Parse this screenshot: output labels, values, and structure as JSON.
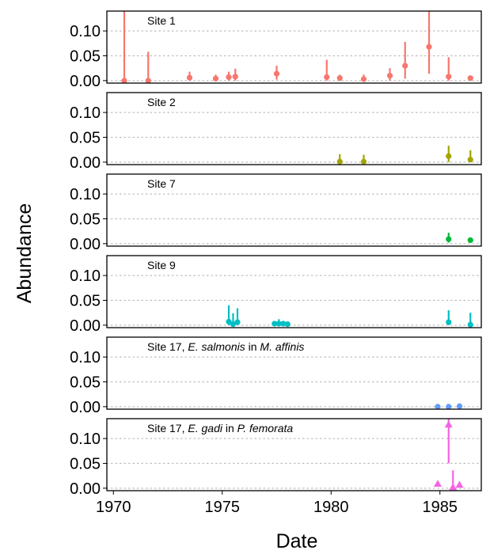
{
  "chart_data": {
    "type": "scatter",
    "xlabel": "Date",
    "ylabel": "Abundance",
    "xlim": [
      1969.7,
      1986.9
    ],
    "ylim": [
      -0.005,
      0.14
    ],
    "xticks": [
      1970,
      1975,
      1980,
      1985
    ],
    "xtick_labels": [
      "1970",
      "1975",
      "1980",
      "1985"
    ],
    "yticks": [
      0.0,
      0.05,
      0.1
    ],
    "ytick_labels": [
      "0.00",
      "0.05",
      "0.10"
    ],
    "panels": [
      {
        "label": [
          {
            "text": "Site 1",
            "italic": false
          }
        ],
        "color": "#F8766D",
        "marker": "circle",
        "points": [
          {
            "x": 1970.5,
            "y": 0.0,
            "lo": 0.0,
            "hi": 0.14
          },
          {
            "x": 1971.6,
            "y": 0.0,
            "lo": 0.0,
            "hi": 0.058
          },
          {
            "x": 1973.5,
            "y": 0.006,
            "lo": 0.0,
            "hi": 0.018
          },
          {
            "x": 1974.7,
            "y": 0.004,
            "lo": 0.0,
            "hi": 0.012
          },
          {
            "x": 1975.3,
            "y": 0.007,
            "lo": 0.0,
            "hi": 0.018
          },
          {
            "x": 1975.6,
            "y": 0.008,
            "lo": 0.0,
            "hi": 0.024
          },
          {
            "x": 1977.5,
            "y": 0.014,
            "lo": 0.002,
            "hi": 0.03
          },
          {
            "x": 1979.8,
            "y": 0.007,
            "lo": 0.0,
            "hi": 0.042
          },
          {
            "x": 1980.4,
            "y": 0.005,
            "lo": 0.0,
            "hi": 0.012
          },
          {
            "x": 1981.5,
            "y": 0.003,
            "lo": 0.0,
            "hi": 0.012
          },
          {
            "x": 1982.7,
            "y": 0.01,
            "lo": 0.0,
            "hi": 0.025
          },
          {
            "x": 1983.4,
            "y": 0.03,
            "lo": 0.004,
            "hi": 0.078
          },
          {
            "x": 1984.5,
            "y": 0.068,
            "lo": 0.014,
            "hi": 0.14
          },
          {
            "x": 1985.4,
            "y": 0.008,
            "lo": 0.0,
            "hi": 0.047
          },
          {
            "x": 1986.4,
            "y": 0.005,
            "lo": 0.002,
            "hi": 0.01
          }
        ]
      },
      {
        "label": [
          {
            "text": "Site 2",
            "italic": false
          }
        ],
        "color": "#A3A500",
        "marker": "circle",
        "points": [
          {
            "x": 1980.4,
            "y": 0.001,
            "lo": 0.0,
            "hi": 0.016
          },
          {
            "x": 1981.5,
            "y": 0.001,
            "lo": 0.0,
            "hi": 0.015
          },
          {
            "x": 1985.4,
            "y": 0.012,
            "lo": 0.0,
            "hi": 0.033
          },
          {
            "x": 1986.4,
            "y": 0.005,
            "lo": 0.0,
            "hi": 0.024
          }
        ]
      },
      {
        "label": [
          {
            "text": "Site 7",
            "italic": false
          }
        ],
        "color": "#00BA38",
        "marker": "circle",
        "points": [
          {
            "x": 1985.4,
            "y": 0.009,
            "lo": 0.002,
            "hi": 0.022
          },
          {
            "x": 1986.4,
            "y": 0.007,
            "lo": 0.004,
            "hi": 0.012
          }
        ]
      },
      {
        "label": [
          {
            "text": "Site 9",
            "italic": false
          }
        ],
        "color": "#00BFC4",
        "marker": "circle",
        "points": [
          {
            "x": 1975.3,
            "y": 0.007,
            "lo": 0.0,
            "hi": 0.04
          },
          {
            "x": 1975.5,
            "y": 0.002,
            "lo": 0.0,
            "hi": 0.024
          },
          {
            "x": 1975.7,
            "y": 0.006,
            "lo": 0.0,
            "hi": 0.034
          },
          {
            "x": 1977.4,
            "y": 0.003,
            "lo": 0.0,
            "hi": 0.006
          },
          {
            "x": 1977.6,
            "y": 0.003,
            "lo": 0.0,
            "hi": 0.012
          },
          {
            "x": 1977.8,
            "y": 0.003,
            "lo": 0.0,
            "hi": 0.007
          },
          {
            "x": 1978.0,
            "y": 0.002,
            "lo": 0.0,
            "hi": 0.005
          },
          {
            "x": 1985.4,
            "y": 0.006,
            "lo": 0.0,
            "hi": 0.03
          },
          {
            "x": 1986.4,
            "y": 0.001,
            "lo": 0.0,
            "hi": 0.025
          }
        ]
      },
      {
        "label": [
          {
            "text": "Site 17, ",
            "italic": false
          },
          {
            "text": "E. salmonis",
            "italic": true
          },
          {
            "text": " in ",
            "italic": false
          },
          {
            "text": "M. affinis",
            "italic": true
          }
        ],
        "color": "#619CFF",
        "marker": "circle",
        "points": [
          {
            "x": 1984.9,
            "y": 0.0,
            "lo": 0.0,
            "hi": 0.001
          },
          {
            "x": 1985.4,
            "y": 0.0,
            "lo": 0.0,
            "hi": 0.001
          },
          {
            "x": 1985.9,
            "y": 0.001,
            "lo": 0.0,
            "hi": 0.004
          }
        ]
      },
      {
        "label": [
          {
            "text": "Site 17, ",
            "italic": false
          },
          {
            "text": "E. gadi",
            "italic": true
          },
          {
            "text": " in ",
            "italic": false
          },
          {
            "text": "P. femorata",
            "italic": true
          }
        ],
        "color": "#F564E3",
        "marker": "triangle",
        "points": [
          {
            "x": 1984.9,
            "y": 0.009,
            "lo": 0.006,
            "hi": 0.012
          },
          {
            "x": 1985.4,
            "y": 0.128,
            "lo": 0.05,
            "hi": 0.14
          },
          {
            "x": 1985.6,
            "y": 0.002,
            "lo": 0.0,
            "hi": 0.036
          },
          {
            "x": 1985.9,
            "y": 0.007,
            "lo": 0.003,
            "hi": 0.012
          }
        ]
      }
    ],
    "grid": "horizontal dotted",
    "legend": "none"
  }
}
